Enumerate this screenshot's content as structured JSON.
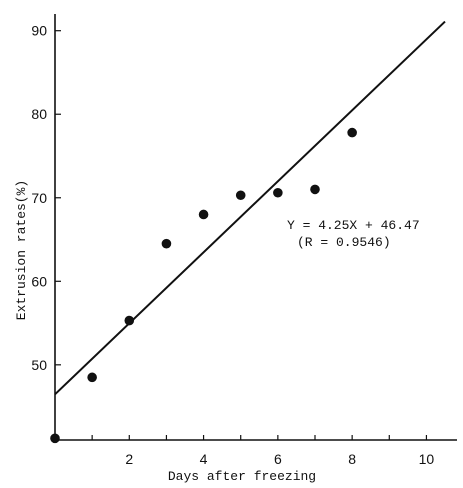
{
  "chart_data": {
    "type": "scatter",
    "title": "",
    "xlabel": "Days after freezing",
    "ylabel": "Extrusion rates(%)",
    "xlim": [
      0,
      10.5
    ],
    "ylim": [
      41,
      92
    ],
    "x_ticks": [
      0,
      1,
      2,
      3,
      4,
      5,
      6,
      7,
      8,
      9,
      10
    ],
    "x_tick_labels": [
      "2",
      "4",
      "6",
      "8",
      "10"
    ],
    "x_tick_label_values": [
      2,
      4,
      6,
      8,
      10
    ],
    "y_ticks": [
      50,
      60,
      70,
      80,
      90
    ],
    "y_tick_labels": [
      "50",
      "60",
      "70",
      "80",
      "90"
    ],
    "grid": false,
    "legend": "none",
    "series": [
      {
        "points": [
          {
            "x": 0,
            "y": 41.2
          },
          {
            "x": 1,
            "y": 48.5
          },
          {
            "x": 2,
            "y": 55.3
          },
          {
            "x": 3,
            "y": 64.5
          },
          {
            "x": 4,
            "y": 68.0
          },
          {
            "x": 5,
            "y": 70.3
          },
          {
            "x": 6,
            "y": 70.6
          },
          {
            "x": 7,
            "y": 71.0
          },
          {
            "x": 8,
            "y": 77.8
          }
        ]
      }
    ],
    "regression": {
      "slope": 4.25,
      "intercept": 46.47,
      "x_range": [
        0,
        10.5
      ]
    },
    "annotation": {
      "equation": "Y = 4.25X + 46.47",
      "r_value": "(R = 0.9546)"
    },
    "colors": {
      "ink": "#111111",
      "background": "#ffffff"
    }
  }
}
